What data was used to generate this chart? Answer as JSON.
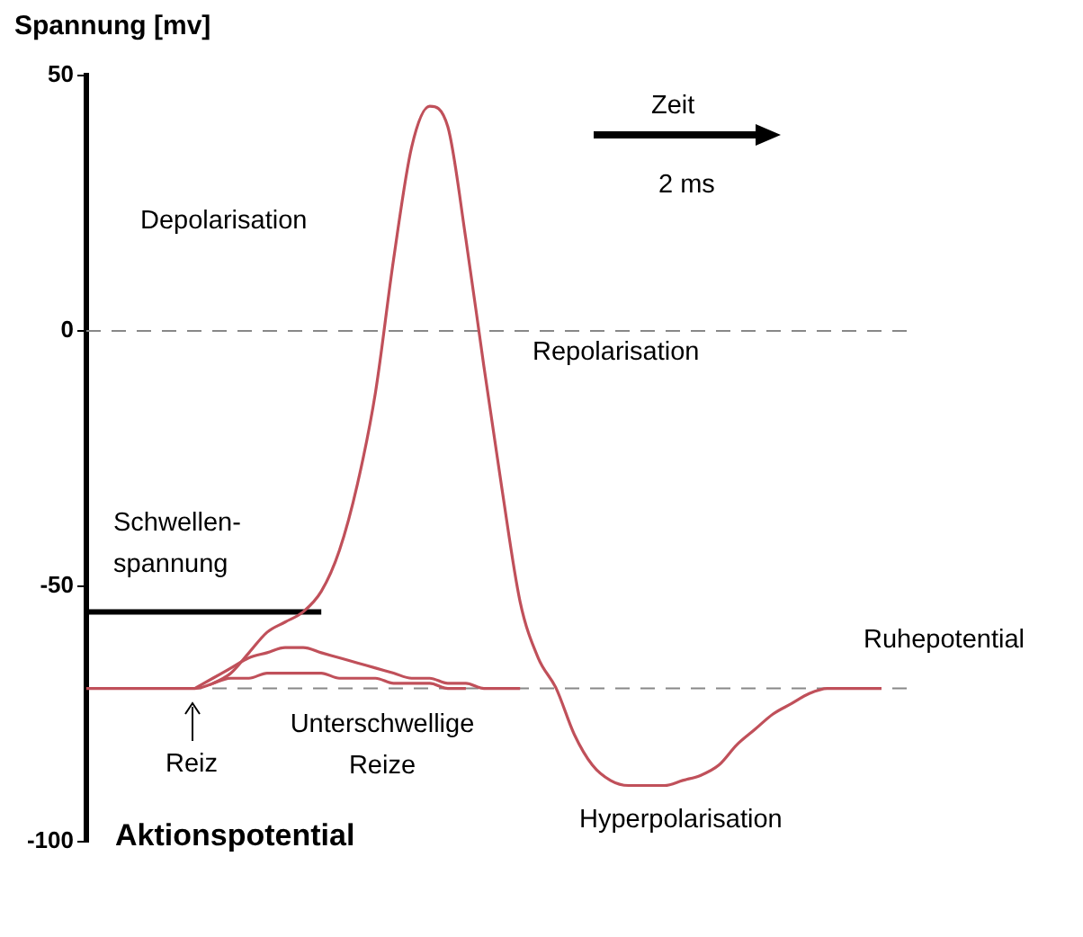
{
  "chart_data": {
    "type": "line",
    "ylabel": "Spannung [mv]",
    "categories": [
      null,
      null,
      null,
      null,
      null,
      null,
      null,
      null,
      null,
      null,
      null,
      null,
      null,
      null,
      null,
      null,
      null,
      null,
      null,
      null,
      null,
      null,
      null,
      null,
      null,
      null,
      null,
      null,
      null,
      null,
      null,
      null,
      null,
      null,
      null,
      null,
      null,
      null,
      null,
      null,
      null,
      null,
      null,
      null,
      null
    ],
    "ylim": [
      -100,
      50
    ],
    "yticks": [
      50,
      0,
      -50,
      -100
    ],
    "tick_labels": "y",
    "marker": "none",
    "series": [
      {
        "color": "#c0505a",
        "values": [
          -70,
          -70,
          -70,
          -70,
          -70,
          -70,
          -70,
          -69,
          -67,
          -63,
          -59,
          -57,
          -55,
          -51,
          -43,
          -30,
          -12,
          14,
          36,
          44,
          40,
          18,
          -7,
          -31,
          -53,
          -64,
          -70,
          -79,
          -85,
          -88,
          -89,
          -89,
          -89,
          -88,
          -87,
          -85,
          -81,
          -78,
          -75,
          -73,
          -71,
          -70,
          -70,
          -70,
          -70
        ]
      },
      {
        "color": "#c0505a",
        "values": [
          null,
          null,
          null,
          null,
          null,
          null,
          -70,
          -68,
          -66,
          -64,
          -63,
          -62,
          -62,
          -63,
          -64,
          -65,
          -66,
          -67,
          -68,
          -68,
          -69,
          -69,
          -70,
          -70,
          -70,
          null,
          null,
          null,
          null,
          null,
          null,
          null,
          null,
          null,
          null,
          null,
          null,
          null,
          null,
          null,
          null,
          null,
          null,
          null,
          null
        ]
      },
      {
        "color": "#c0505a",
        "values": [
          null,
          null,
          null,
          null,
          null,
          null,
          null,
          -69,
          -68,
          -68,
          -67,
          -67,
          -67,
          -67,
          -68,
          -68,
          -68,
          -69,
          -69,
          -69,
          -70,
          -70,
          null,
          null,
          null,
          null,
          null,
          null,
          null,
          null,
          null,
          null,
          null,
          null,
          null,
          null,
          null,
          null,
          null,
          null,
          null,
          null,
          null,
          null,
          null
        ]
      },
      {
        "color": "#000000",
        "values": [
          -55,
          -55,
          -55,
          -55,
          -55,
          -55,
          -55,
          -55,
          -55,
          -55,
          -55,
          -55,
          -55,
          -55,
          null,
          null,
          null,
          null,
          null,
          null,
          null,
          null,
          null,
          null,
          null,
          null,
          null,
          null,
          null,
          null,
          null,
          null,
          null,
          null,
          null,
          null,
          null,
          null,
          null,
          null,
          null,
          null,
          null,
          null,
          null
        ]
      }
    ],
    "ref_lines": [
      {
        "axis": "y",
        "value": 0,
        "color": "#888888",
        "line_style": "dashed"
      },
      {
        "axis": "y",
        "value": -70,
        "color": "#888888",
        "line_style": "dashed"
      }
    ],
    "annotations": [
      "Depolarisation",
      "Repolarisation",
      "Hyperpolarisation",
      "Ruhepotential",
      "Unterschwellige Reize",
      "Reiz",
      "Schwellen-spannung",
      "Zeit",
      "2 ms",
      "Aktionspotential"
    ]
  }
}
